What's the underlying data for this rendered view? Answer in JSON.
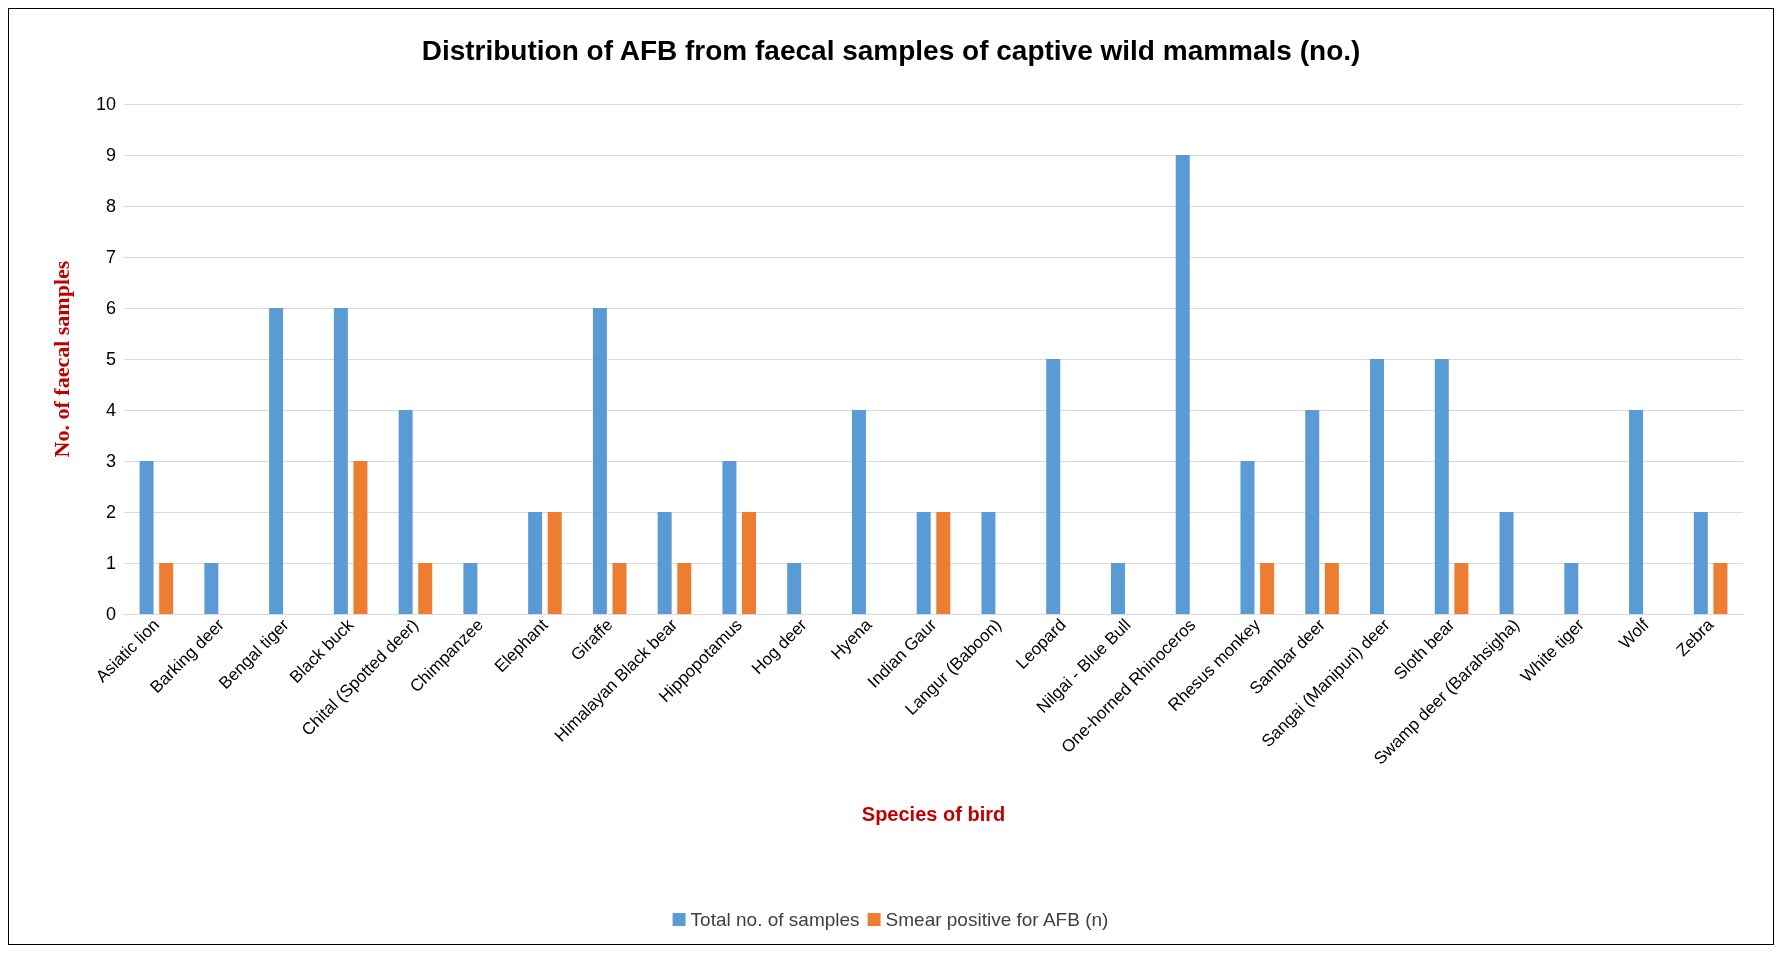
{
  "chart_data": {
    "type": "bar",
    "title": "Distribution of AFB from faecal samples of captive wild mammals (no.)",
    "xlabel": "Species of bird",
    "ylabel": "No. of faecal samples",
    "categories": [
      "Asiatic lion",
      "Barking deer",
      "Bengal tiger",
      "Black buck",
      "Chital (Spotted deer)",
      "Chimpanzee",
      "Elephant",
      "Giraffe",
      "Himalayan Black bear",
      "Hippopotamus",
      "Hog deer",
      "Hyena",
      "Indian Gaur",
      "Langur (Baboon)",
      "Leopard",
      "Nilgai - Blue Bull",
      "One-horned Rhinoceros",
      "Rhesus monkey",
      "Sambar deer",
      "Sangai (Manipuri) deer",
      "Sloth bear",
      "Swamp deer (Barahsigha)",
      "White tiger",
      "Wolf",
      "Zebra"
    ],
    "series": [
      {
        "name": "Total no. of samples",
        "color": "#5b9bd5",
        "values": [
          3,
          1,
          6,
          6,
          4,
          1,
          2,
          6,
          2,
          3,
          1,
          4,
          2,
          2,
          5,
          1,
          9,
          3,
          4,
          5,
          5,
          2,
          1,
          4,
          2
        ]
      },
      {
        "name": "Smear positive for AFB (n)",
        "color": "#ed7d31",
        "values": [
          1,
          null,
          null,
          3,
          1,
          null,
          2,
          1,
          1,
          2,
          null,
          null,
          2,
          null,
          null,
          null,
          null,
          1,
          1,
          null,
          1,
          null,
          null,
          null,
          1
        ]
      }
    ],
    "ylim": [
      0,
      10
    ],
    "yticks": [
      0,
      1,
      2,
      3,
      4,
      5,
      6,
      7,
      8,
      9,
      10
    ],
    "grid": "y",
    "legend": "bottom"
  }
}
